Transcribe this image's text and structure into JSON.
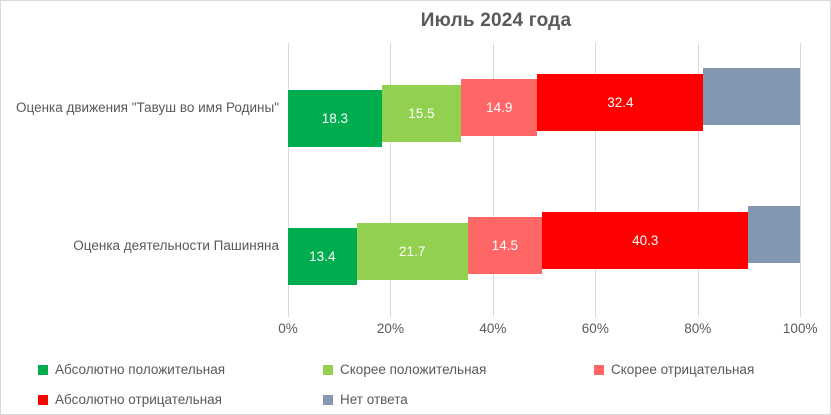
{
  "chart_data": {
    "type": "bar",
    "subtype": "stacked-horizontal-cascading",
    "title": "Июль 2024 года",
    "categories": [
      "Оценка движения \"Тавуш во имя Родины\"",
      "Оценка деятельности Пашиняна"
    ],
    "series": [
      {
        "key": "absolutely-positive",
        "name": "Абсолютно положительная",
        "color": "#00AD4E",
        "values": [
          18.3,
          13.4
        ],
        "show_label": true
      },
      {
        "key": "rather-positive",
        "name": "Скорее положительная",
        "color": "#92D050",
        "values": [
          15.5,
          21.7
        ],
        "show_label": true
      },
      {
        "key": "rather-negative",
        "name": "Скорее отрицательная",
        "color": "#FF6666",
        "values": [
          14.9,
          14.5
        ],
        "show_label": true
      },
      {
        "key": "absolutely-negative",
        "name": "Абсолютно отрицательная",
        "color": "#FF0000",
        "values": [
          32.4,
          40.3
        ],
        "show_label": true
      },
      {
        "key": "no-answer",
        "name": "Нет ответа",
        "color": "#8497B0",
        "values": [
          18.9,
          10.1
        ],
        "show_label": false
      }
    ],
    "x_ticks": [
      "0%",
      "20%",
      "40%",
      "60%",
      "80%",
      "100%"
    ],
    "xlim": [
      0,
      100
    ],
    "grid": "vertical-only",
    "legend_position": "bottom-two-rows",
    "label_color": "#FFFFFF",
    "text_color": "#595959",
    "gridline_color": "#D9D9D9"
  }
}
